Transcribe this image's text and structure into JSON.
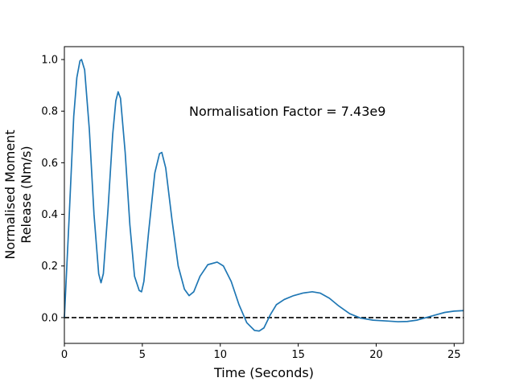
{
  "chart_data": {
    "type": "line",
    "title": "",
    "xlabel": "Time (Seconds)",
    "ylabel_lines": [
      "Normalised Moment",
      "Release (Nm/s)"
    ],
    "xlim": [
      0,
      25.6
    ],
    "ylim": [
      -0.1,
      1.05
    ],
    "xticks": [
      0,
      5,
      10,
      15,
      20,
      25
    ],
    "yticks": [
      0.0,
      0.2,
      0.4,
      0.6,
      0.8,
      1.0
    ],
    "ytick_labels": [
      "0.0",
      "0.2",
      "0.4",
      "0.6",
      "0.8",
      "1.0"
    ],
    "grid": false,
    "legend": "none",
    "annotation": {
      "text": "Normalisation Factor = 7.43e9",
      "x": 8.0,
      "y": 0.8
    },
    "reference_line": {
      "y": 0.0,
      "style": "dashed",
      "color": "#000000"
    },
    "series": [
      {
        "color": "#1f77b4",
        "x": [
          0,
          0.3,
          0.6,
          0.8,
          1.0,
          1.1,
          1.3,
          1.6,
          1.9,
          2.2,
          2.35,
          2.5,
          2.8,
          3.1,
          3.3,
          3.45,
          3.6,
          3.9,
          4.2,
          4.5,
          4.8,
          4.95,
          5.1,
          5.4,
          5.8,
          6.1,
          6.25,
          6.5,
          6.9,
          7.3,
          7.7,
          8.0,
          8.3,
          8.7,
          9.2,
          9.8,
          10.2,
          10.7,
          11.2,
          11.7,
          12.2,
          12.5,
          12.8,
          13.2,
          13.6,
          14.1,
          14.7,
          15.3,
          15.9,
          16.4,
          17.0,
          17.6,
          18.3,
          19.0,
          19.8,
          20.6,
          21.4,
          22.0,
          22.6,
          23.2,
          23.8,
          24.4,
          25.0,
          25.6
        ],
        "y": [
          0.0,
          0.38,
          0.78,
          0.93,
          0.995,
          1.0,
          0.96,
          0.73,
          0.4,
          0.17,
          0.135,
          0.17,
          0.42,
          0.71,
          0.84,
          0.875,
          0.85,
          0.64,
          0.36,
          0.16,
          0.105,
          0.1,
          0.14,
          0.33,
          0.56,
          0.635,
          0.64,
          0.58,
          0.38,
          0.2,
          0.11,
          0.085,
          0.1,
          0.16,
          0.205,
          0.215,
          0.2,
          0.14,
          0.05,
          -0.02,
          -0.05,
          -0.052,
          -0.04,
          0.01,
          0.05,
          0.07,
          0.085,
          0.095,
          0.1,
          0.095,
          0.075,
          0.045,
          0.015,
          -0.002,
          -0.01,
          -0.013,
          -0.016,
          -0.015,
          -0.01,
          0.0,
          0.01,
          0.02,
          0.025,
          0.027
        ]
      }
    ]
  }
}
